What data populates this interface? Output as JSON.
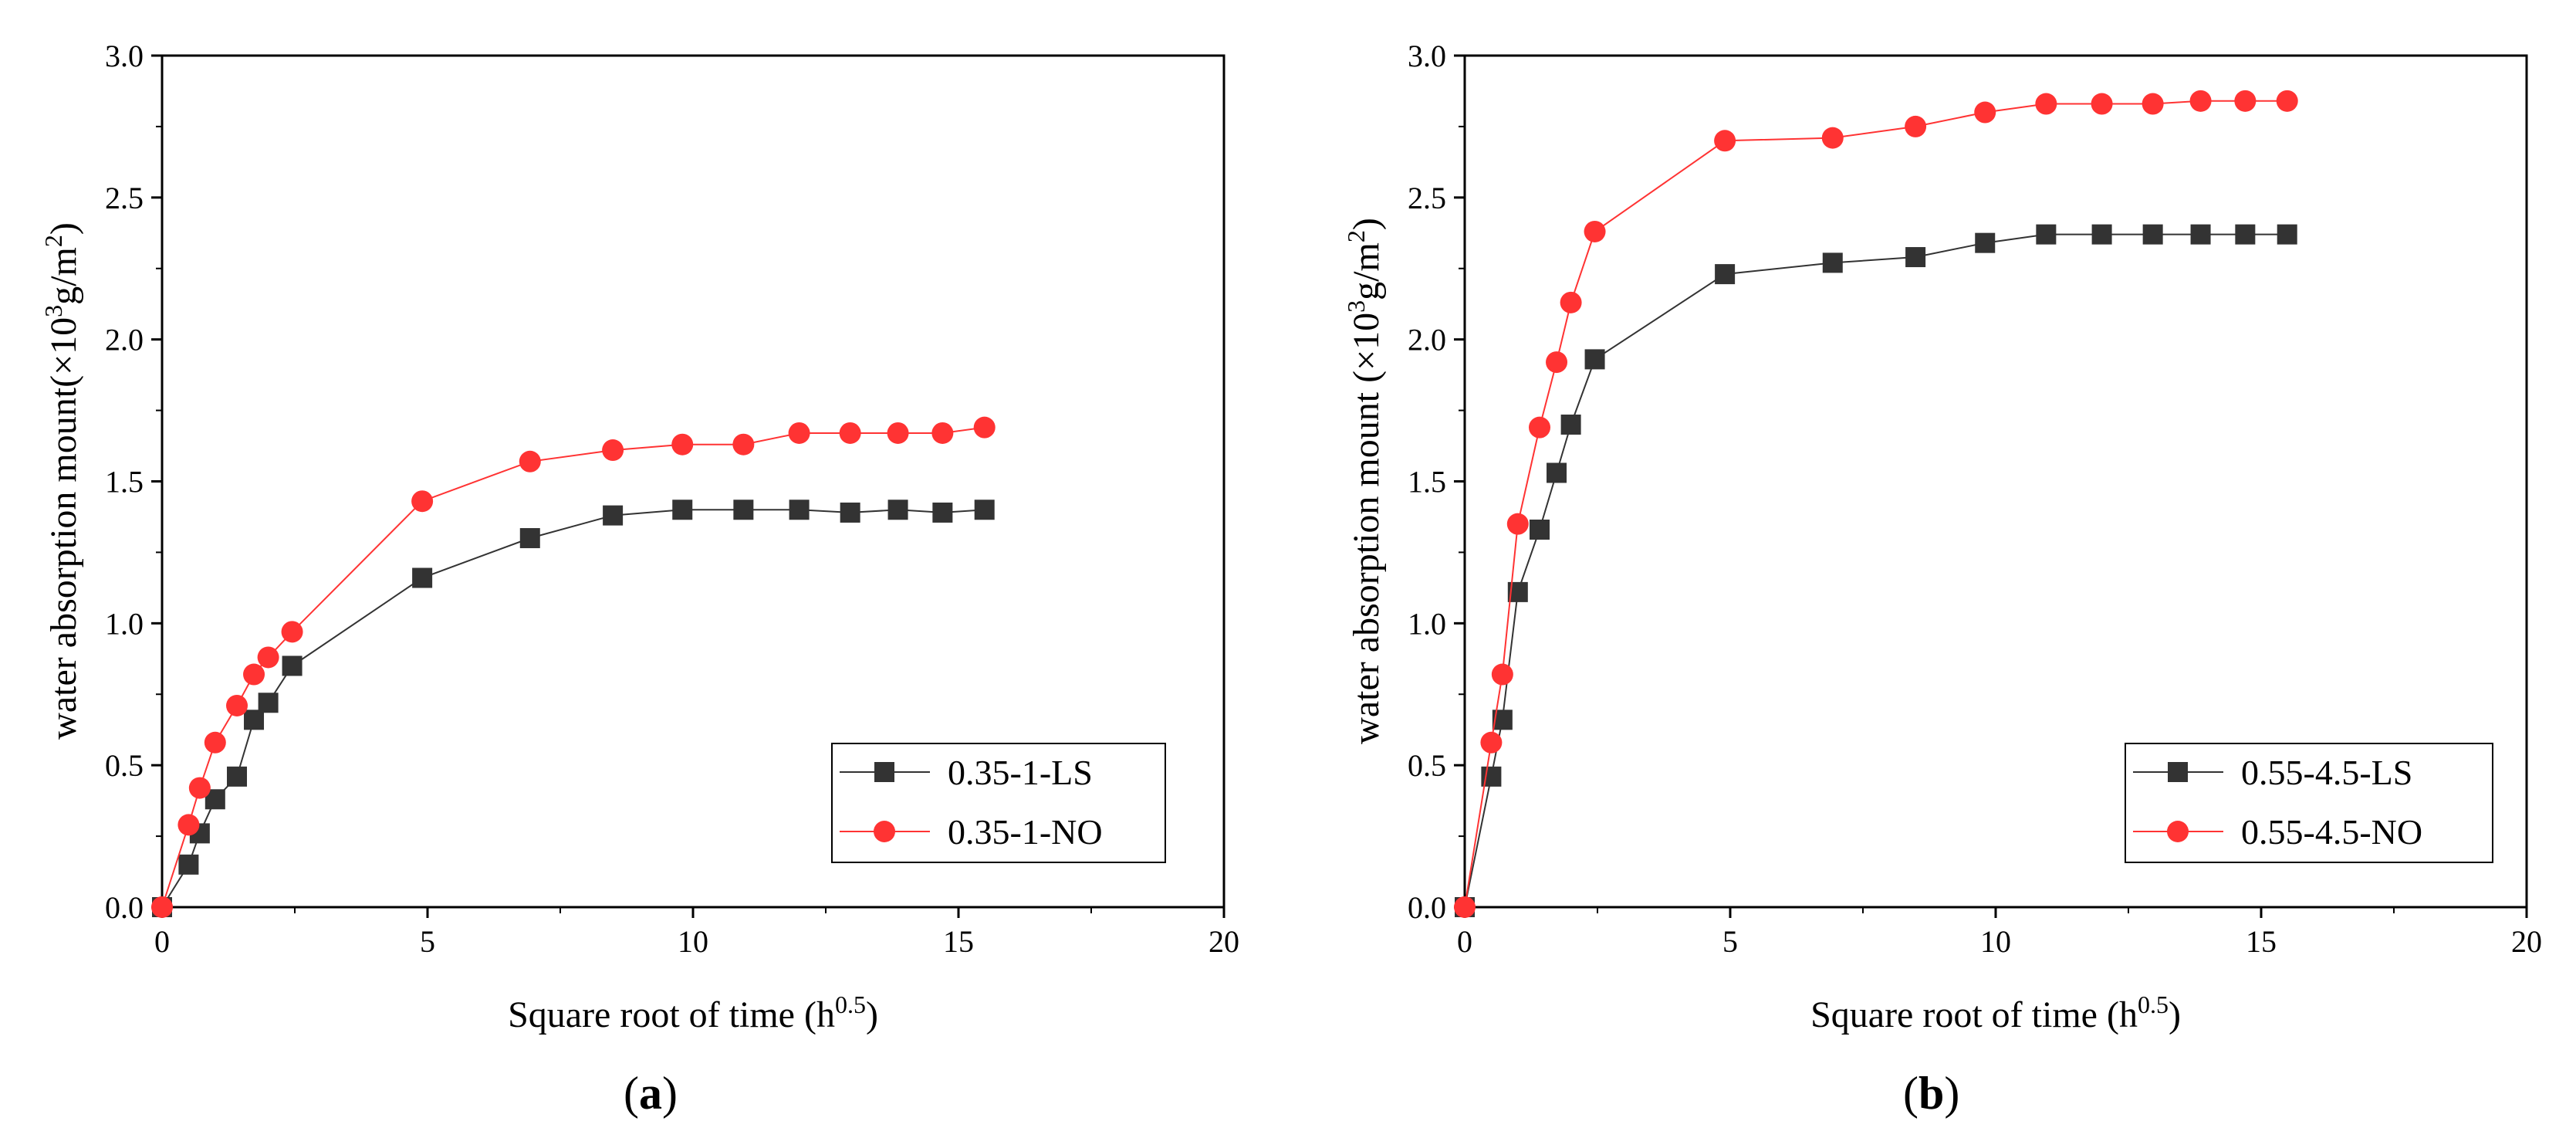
{
  "chart_data": [
    {
      "panel_label": "(a)",
      "type": "line",
      "xlabel": "Square root of time (h",
      "xlabel_sup": "0.5",
      "xlabel_end": ")",
      "ylabel": "water absorption mount(×10",
      "ylabel_sup1": "3",
      "ylabel_mid": "g/m",
      "ylabel_sup2": "2",
      "ylabel_end": ")",
      "xlim": [
        0,
        20
      ],
      "ylim": [
        0,
        3.0
      ],
      "xticks": [
        "0",
        "5",
        "10",
        "15",
        "20"
      ],
      "yticks": [
        "0.0",
        "0.5",
        "1.0",
        "1.5",
        "2.0",
        "2.5",
        "3.0"
      ],
      "legend_position": "lower-right",
      "series": [
        {
          "name": "0.35-1-LS",
          "color": "#333333",
          "marker": "square",
          "x": [
            0,
            0.5,
            0.71,
            1.0,
            1.41,
            1.73,
            2.0,
            2.45,
            4.9,
            6.93,
            8.49,
            9.8,
            10.95,
            12.0,
            12.96,
            13.86,
            14.7,
            15.49
          ],
          "values": [
            0,
            0.15,
            0.26,
            0.38,
            0.46,
            0.66,
            0.72,
            0.85,
            1.16,
            1.3,
            1.38,
            1.4,
            1.4,
            1.4,
            1.39,
            1.4,
            1.39,
            1.4
          ]
        },
        {
          "name": "0.35-1-NO",
          "color": "#ff3333",
          "marker": "circle",
          "x": [
            0,
            0.5,
            0.71,
            1.0,
            1.41,
            1.73,
            2.0,
            2.45,
            4.9,
            6.93,
            8.49,
            9.8,
            10.95,
            12.0,
            12.96,
            13.86,
            14.7,
            15.49
          ],
          "values": [
            0,
            0.29,
            0.42,
            0.58,
            0.71,
            0.82,
            0.88,
            0.97,
            1.43,
            1.57,
            1.61,
            1.63,
            1.63,
            1.67,
            1.67,
            1.67,
            1.67,
            1.69
          ]
        }
      ]
    },
    {
      "panel_label": "(b)",
      "type": "line",
      "xlabel": "Square root of time (h",
      "xlabel_sup": "0.5",
      "xlabel_end": ")",
      "ylabel": "water absorption mount (×10",
      "ylabel_sup1": "3",
      "ylabel_mid": "g/m",
      "ylabel_sup2": "2",
      "ylabel_end": ")",
      "xlim": [
        0,
        20
      ],
      "ylim": [
        0,
        3.0
      ],
      "xticks": [
        "0",
        "5",
        "10",
        "15",
        "20"
      ],
      "yticks": [
        "0.0",
        "0.5",
        "1.0",
        "1.5",
        "2.0",
        "2.5",
        "3.0"
      ],
      "legend_position": "lower-right",
      "series": [
        {
          "name": "0.55-4.5-LS",
          "color": "#333333",
          "marker": "square",
          "x": [
            0,
            0.5,
            0.71,
            1.0,
            1.41,
            1.73,
            2.0,
            2.45,
            4.9,
            6.93,
            8.49,
            9.8,
            10.95,
            12.0,
            12.96,
            13.86,
            14.7,
            15.49
          ],
          "values": [
            0,
            0.46,
            0.66,
            1.11,
            1.33,
            1.53,
            1.7,
            1.93,
            2.23,
            2.27,
            2.29,
            2.34,
            2.37,
            2.37,
            2.37,
            2.37,
            2.37,
            2.37
          ]
        },
        {
          "name": "0.55-4.5-NO",
          "color": "#ff3333",
          "marker": "circle",
          "x": [
            0,
            0.5,
            0.71,
            1.0,
            1.41,
            1.73,
            2.0,
            2.45,
            4.9,
            6.93,
            8.49,
            9.8,
            10.95,
            12.0,
            12.96,
            13.86,
            14.7,
            15.49
          ],
          "values": [
            0,
            0.58,
            0.82,
            1.35,
            1.69,
            1.92,
            2.13,
            2.38,
            2.7,
            2.71,
            2.75,
            2.8,
            2.83,
            2.83,
            2.83,
            2.84,
            2.84,
            2.84
          ]
        }
      ]
    }
  ]
}
